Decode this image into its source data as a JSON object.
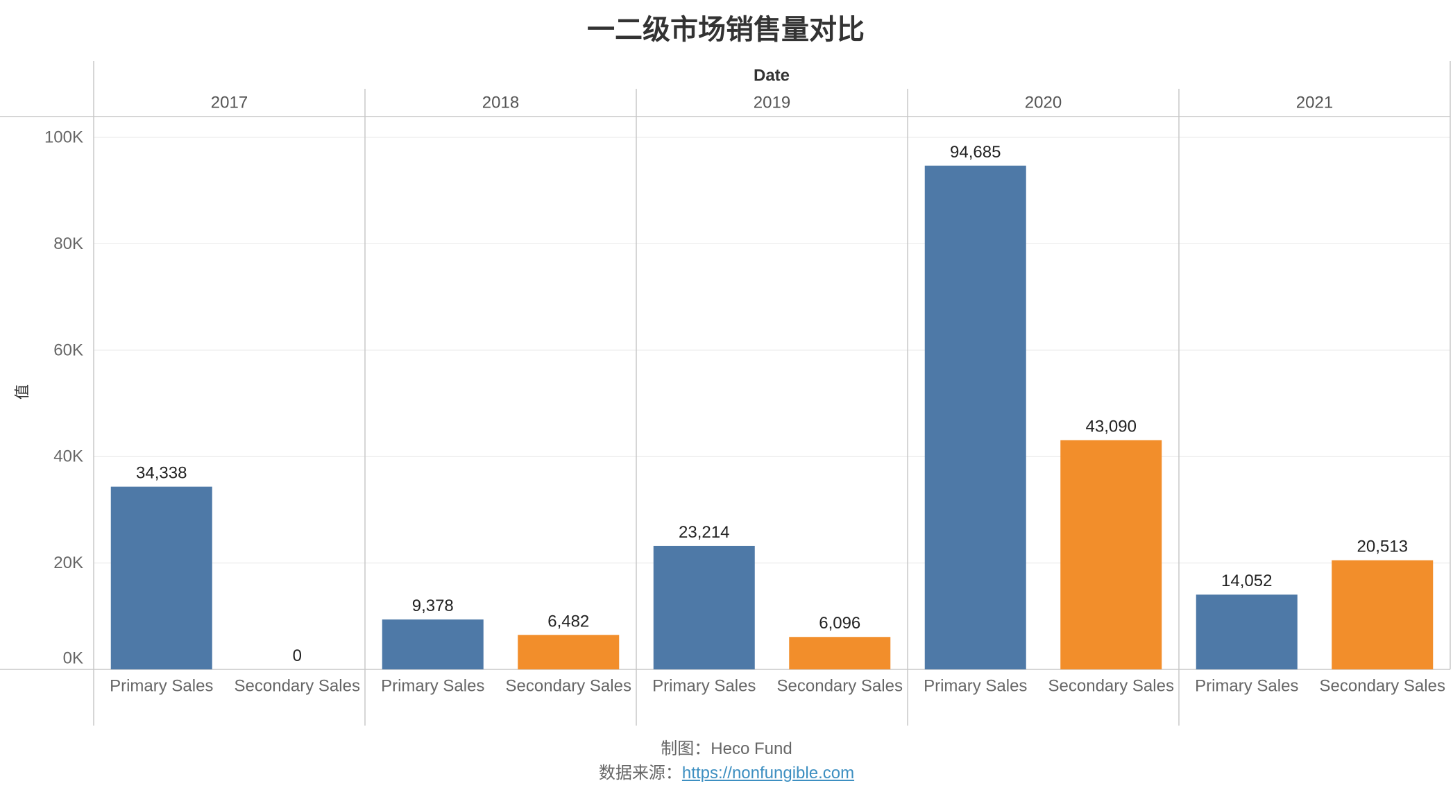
{
  "chart_data": {
    "type": "bar",
    "title": "一二级市场销售量对比",
    "column_header": "Date",
    "groups": [
      "2017",
      "2018",
      "2019",
      "2020",
      "2021"
    ],
    "series": [
      {
        "name": "Primary Sales",
        "color": "#4e79a7",
        "values": [
          34338,
          9378,
          23214,
          94685,
          14052
        ]
      },
      {
        "name": "Secondary Sales",
        "color": "#f28e2b",
        "values": [
          0,
          6482,
          6096,
          43090,
          20513
        ]
      }
    ],
    "ylabel": "值",
    "ylim": [
      0,
      100000
    ],
    "yticks": [
      0,
      20000,
      40000,
      60000,
      80000,
      100000
    ],
    "ytick_labels": [
      "0K",
      "20K",
      "40K",
      "60K",
      "80K",
      "100K"
    ],
    "grid": true,
    "data_labels": true,
    "legend": "none"
  },
  "footer": {
    "credit": "制图：Heco Fund",
    "source_label": "数据来源：",
    "source_link": "https://nonfungible.com"
  }
}
